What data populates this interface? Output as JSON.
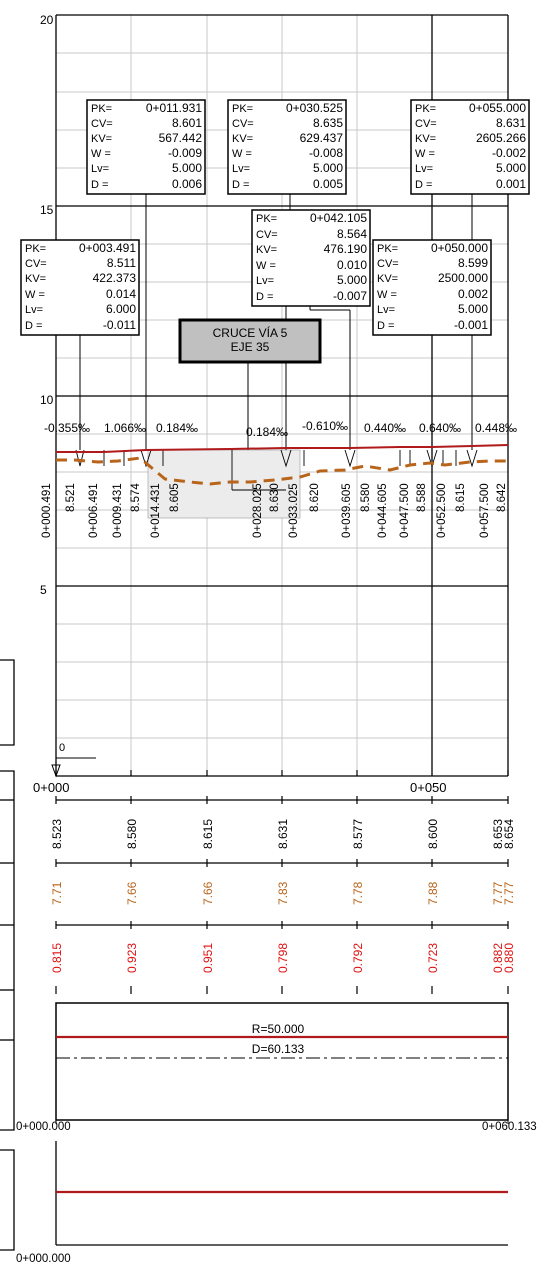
{
  "colors": {
    "grid_major": "#000000",
    "grid_minor": "#c8c8c8",
    "terrain": "#b8651b",
    "rasante": "#b01a1a",
    "red_text": "#e01010",
    "orange_text": "#b8651b",
    "label_box_fill": "#c0c0c0",
    "zone_fill": "#ececec"
  },
  "elevation_axis": {
    "labels": [
      "20",
      "15",
      "10",
      "5"
    ],
    "zero_label": "0"
  },
  "station_axis": {
    "labels": [
      "0+000",
      "0+050"
    ]
  },
  "curve_boxes": [
    {
      "rows": [
        [
          "PK=",
          "0+003.491"
        ],
        [
          "CV=",
          "8.511"
        ],
        [
          "KV=",
          "422.373"
        ],
        [
          "W =",
          "0.014"
        ],
        [
          "Lv=",
          "6.000"
        ],
        [
          "D =",
          "-0.011"
        ]
      ]
    },
    {
      "rows": [
        [
          "PK=",
          "0+011.931"
        ],
        [
          "CV=",
          "8.601"
        ],
        [
          "KV=",
          "567.442"
        ],
        [
          "W =",
          "-0.009"
        ],
        [
          "Lv=",
          "5.000"
        ],
        [
          "D =",
          "0.006"
        ]
      ]
    },
    {
      "rows": [
        [
          "PK=",
          "0+030.525"
        ],
        [
          "CV=",
          "8.635"
        ],
        [
          "KV=",
          "629.437"
        ],
        [
          "W =",
          "-0.008"
        ],
        [
          "Lv=",
          "5.000"
        ],
        [
          "D =",
          "0.005"
        ]
      ]
    },
    {
      "rows": [
        [
          "PK=",
          "0+042.105"
        ],
        [
          "CV=",
          "8.564"
        ],
        [
          "KV=",
          "476.190"
        ],
        [
          "W =",
          "0.010"
        ],
        [
          "Lv=",
          "5.000"
        ],
        [
          "D =",
          "-0.007"
        ]
      ]
    },
    {
      "rows": [
        [
          "PK=",
          "0+050.000"
        ],
        [
          "CV=",
          "8.599"
        ],
        [
          "KV=",
          "2500.000"
        ],
        [
          "W =",
          "0.002"
        ],
        [
          "Lv=",
          "5.000"
        ],
        [
          "D =",
          "-0.001"
        ]
      ]
    },
    {
      "rows": [
        [
          "PK=",
          "0+055.000"
        ],
        [
          "CV=",
          "8.631"
        ],
        [
          "KV=",
          "2605.266"
        ],
        [
          "W =",
          "-0.002"
        ],
        [
          "Lv=",
          "5.000"
        ],
        [
          "D =",
          "0.001"
        ]
      ]
    }
  ],
  "crossing_label": {
    "line1": "CRUCE VÍA 5",
    "line2": "EJE 35"
  },
  "grades": [
    "-0.355‰",
    "1.066‰",
    "0.184‰",
    "0.184‰",
    "-0.610‰",
    "0.440‰",
    "0.640‰",
    "0.448‰"
  ],
  "point_labels": [
    {
      "pk": "0+000.491",
      "elev": "8.521"
    },
    {
      "pk": "0+006.491",
      "elev": ""
    },
    {
      "pk": "0+009.431",
      "elev": "8.574"
    },
    {
      "pk": "0+014.431",
      "elev": "8.605"
    },
    {
      "pk": "0+028.025",
      "elev": "8.630"
    },
    {
      "pk": "0+033.025",
      "elev": "8.620"
    },
    {
      "pk": "0+039.605",
      "elev": "8.580"
    },
    {
      "pk": "0+044.605",
      "elev": ""
    },
    {
      "pk": "0+047.500",
      "elev": "8.588"
    },
    {
      "pk": "0+052.500",
      "elev": "8.615"
    },
    {
      "pk": "0+057.500",
      "elev": "8.642"
    }
  ],
  "band_rasante": [
    "8.523",
    "8.580",
    "8.615",
    "8.631",
    "8.577",
    "8.600",
    "8.653",
    "8.654"
  ],
  "band_terreno": [
    "7.71",
    "7.66",
    "7.66",
    "7.83",
    "7.78",
    "7.88",
    "7.77",
    "7.77"
  ],
  "band_diferencia": [
    "0.815",
    "0.923",
    "0.951",
    "0.798",
    "0.792",
    "0.723",
    "0.882",
    "0.880"
  ],
  "alignment": {
    "radius": "R=50.000",
    "length": "D=60.133",
    "start": "0+000.000",
    "end": "0+060.133"
  },
  "bottom_band": {
    "start": "0+000.000"
  }
}
